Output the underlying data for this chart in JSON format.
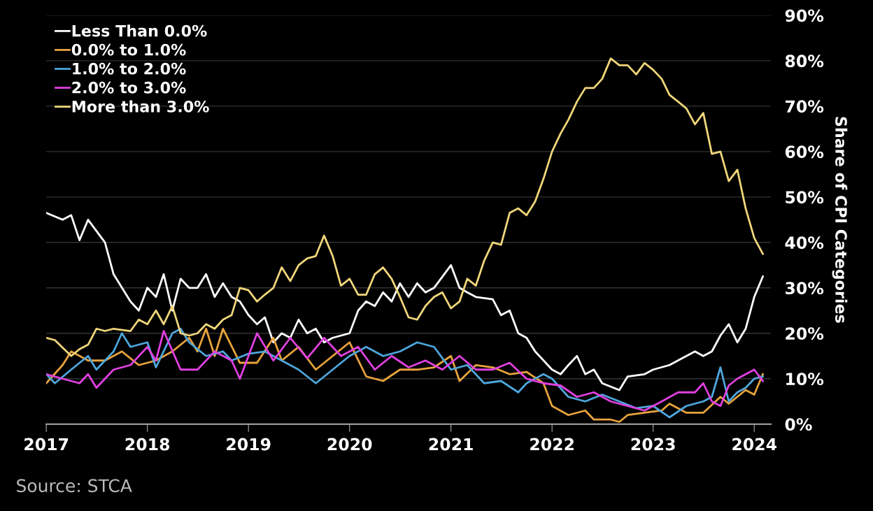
{
  "chart_data": {
    "type": "line",
    "ylabel": "Share of CPI Categories",
    "annotations": [
      "Source: STCA"
    ],
    "xlim": [
      "2017-01",
      "2024-03"
    ],
    "xticks": [
      {
        "value": "2017-01",
        "label": "2017"
      },
      {
        "value": "2018-01",
        "label": "2018"
      },
      {
        "value": "2019-01",
        "label": "2019"
      },
      {
        "value": "2020-01",
        "label": "2020"
      },
      {
        "value": "2021-01",
        "label": "2021"
      },
      {
        "value": "2022-01",
        "label": "2022"
      },
      {
        "value": "2023-01",
        "label": "2023"
      },
      {
        "value": "2024-01",
        "label": "2024"
      }
    ],
    "ylim": [
      0,
      90
    ],
    "yticks": [
      {
        "value": 0,
        "label": "0%"
      },
      {
        "value": 10,
        "label": "10%"
      },
      {
        "value": 20,
        "label": "20%"
      },
      {
        "value": 30,
        "label": "30%"
      },
      {
        "value": 40,
        "label": "40%"
      },
      {
        "value": 50,
        "label": "50%"
      },
      {
        "value": 60,
        "label": "60%"
      },
      {
        "value": 70,
        "label": "70%"
      },
      {
        "value": 80,
        "label": "80%"
      },
      {
        "value": 90,
        "label": "90%"
      }
    ],
    "grid": "y",
    "legend": "top left",
    "marker": "none",
    "line_style": "solid",
    "series": [
      {
        "name": "Less Than 0.0%",
        "color": "#ffffff",
        "x": [
          "2017-01",
          "2017-03",
          "2017-04",
          "2017-05",
          "2017-06",
          "2017-08",
          "2017-09",
          "2017-11",
          "2017-12",
          "2018-01",
          "2018-02",
          "2018-03",
          "2018-04",
          "2018-05",
          "2018-06",
          "2018-07",
          "2018-08",
          "2018-09",
          "2018-10",
          "2018-11",
          "2018-12",
          "2019-01",
          "2019-02",
          "2019-03",
          "2019-04",
          "2019-05",
          "2019-06",
          "2019-07",
          "2019-08",
          "2019-09",
          "2019-10",
          "2019-11",
          "2020-01",
          "2020-02",
          "2020-03",
          "2020-04",
          "2020-05",
          "2020-06",
          "2020-07",
          "2020-08",
          "2020-09",
          "2020-10",
          "2020-11",
          "2021-01",
          "2021-02",
          "2021-03",
          "2021-04",
          "2021-06",
          "2021-07",
          "2021-08",
          "2021-09",
          "2021-10",
          "2021-11",
          "2022-01",
          "2022-02",
          "2022-03",
          "2022-04",
          "2022-05",
          "2022-06",
          "2022-07",
          "2022-09",
          "2022-10",
          "2022-12",
          "2023-01",
          "2023-03",
          "2023-05",
          "2023-06",
          "2023-07",
          "2023-08",
          "2023-09",
          "2023-10",
          "2023-11",
          "2023-12",
          "2024-01",
          "2024-02"
        ],
        "values": [
          46.5,
          45,
          46,
          40.5,
          45,
          40,
          33,
          27,
          25,
          30,
          28,
          33,
          25,
          32,
          30,
          30,
          33,
          28,
          31,
          28,
          27,
          24,
          22,
          23.5,
          18,
          20,
          19,
          23,
          20,
          21,
          18,
          19,
          20,
          25,
          27,
          26,
          29,
          27,
          31,
          28,
          31,
          29,
          30,
          35,
          30,
          29,
          28,
          27.5,
          24,
          25,
          20,
          19,
          16,
          12,
          11,
          13,
          15,
          11,
          12,
          9,
          7.5,
          10.5,
          11,
          12,
          13,
          15,
          16,
          15,
          16,
          19.5,
          22,
          18,
          21,
          28,
          32.5
        ]
      },
      {
        "name": "0.0% to 1.0%",
        "color": "#e8a33d",
        "x": [
          "2017-01",
          "2017-03",
          "2017-04",
          "2017-06",
          "2017-08",
          "2017-10",
          "2017-12",
          "2018-02",
          "2018-04",
          "2018-06",
          "2018-07",
          "2018-08",
          "2018-09",
          "2018-10",
          "2018-12",
          "2019-02",
          "2019-04",
          "2019-05",
          "2019-07",
          "2019-09",
          "2019-11",
          "2020-01",
          "2020-03",
          "2020-05",
          "2020-07",
          "2020-09",
          "2020-11",
          "2021-01",
          "2021-02",
          "2021-04",
          "2021-06",
          "2021-08",
          "2021-10",
          "2021-12",
          "2022-01",
          "2022-03",
          "2022-05",
          "2022-06",
          "2022-08",
          "2022-09",
          "2022-10",
          "2022-12",
          "2023-02",
          "2023-03",
          "2023-05",
          "2023-07",
          "2023-09",
          "2023-10",
          "2023-12",
          "2024-01",
          "2024-02"
        ],
        "values": [
          9,
          13,
          16,
          14,
          14,
          16,
          13,
          14,
          16,
          19,
          16,
          21,
          15,
          21,
          13.5,
          13.5,
          19,
          14,
          17,
          12,
          15,
          18,
          10.5,
          9.5,
          12,
          12,
          12.5,
          15,
          9.5,
          13,
          12.5,
          11,
          11.5,
          9,
          4,
          2,
          3,
          1,
          1,
          0.5,
          2,
          2.5,
          3,
          4.5,
          2.5,
          2.5,
          6,
          4.5,
          7.5,
          6.5,
          11
        ]
      },
      {
        "name": "1.0% to 2.0%",
        "color": "#4ea6dc",
        "x": [
          "2017-01",
          "2017-02",
          "2017-04",
          "2017-06",
          "2017-07",
          "2017-09",
          "2017-10",
          "2017-11",
          "2018-01",
          "2018-02",
          "2018-04",
          "2018-05",
          "2018-06",
          "2018-08",
          "2018-10",
          "2018-11",
          "2019-01",
          "2019-03",
          "2019-05",
          "2019-07",
          "2019-09",
          "2019-11",
          "2020-01",
          "2020-03",
          "2020-05",
          "2020-07",
          "2020-09",
          "2020-11",
          "2021-01",
          "2021-03",
          "2021-05",
          "2021-07",
          "2021-09",
          "2021-10",
          "2021-12",
          "2022-01",
          "2022-03",
          "2022-05",
          "2022-07",
          "2022-09",
          "2022-11",
          "2023-01",
          "2023-03",
          "2023-05",
          "2023-07",
          "2023-08",
          "2023-09",
          "2023-10",
          "2023-11",
          "2023-12",
          "2024-01",
          "2024-02"
        ],
        "values": [
          11,
          9,
          12,
          15,
          12,
          16,
          20,
          17,
          18,
          12.5,
          20,
          21,
          18,
          15,
          16,
          14,
          15.5,
          16,
          14,
          12,
          9,
          12,
          15,
          17,
          15,
          16,
          18,
          17,
          12,
          13,
          9,
          9.5,
          7,
          9,
          11,
          10,
          6,
          5,
          6.5,
          5,
          3.5,
          4,
          1.5,
          4,
          5,
          6,
          12.5,
          5,
          7,
          8,
          10,
          10.5
        ]
      },
      {
        "name": "2.0% to 3.0%",
        "color": "#e040e0",
        "x": [
          "2017-01",
          "2017-03",
          "2017-05",
          "2017-06",
          "2017-07",
          "2017-09",
          "2017-11",
          "2018-01",
          "2018-02",
          "2018-03",
          "2018-05",
          "2018-07",
          "2018-09",
          "2018-11",
          "2018-12",
          "2019-02",
          "2019-04",
          "2019-06",
          "2019-08",
          "2019-10",
          "2019-12",
          "2020-02",
          "2020-04",
          "2020-06",
          "2020-08",
          "2020-10",
          "2020-12",
          "2021-02",
          "2021-04",
          "2021-06",
          "2021-08",
          "2021-10",
          "2021-12",
          "2022-02",
          "2022-04",
          "2022-06",
          "2022-08",
          "2022-10",
          "2022-12",
          "2023-02",
          "2023-04",
          "2023-06",
          "2023-07",
          "2023-08",
          "2023-09",
          "2023-10",
          "2023-11",
          "2024-01",
          "2024-02"
        ],
        "values": [
          11,
          10,
          9,
          11,
          8,
          12,
          13,
          17,
          14,
          20.5,
          12,
          12,
          16,
          14,
          10,
          20,
          14,
          19,
          14.5,
          19,
          15,
          17,
          12,
          15,
          12.5,
          14,
          12,
          15,
          12,
          12,
          13.5,
          10,
          9,
          8.5,
          6,
          7,
          5,
          4,
          3,
          5,
          7,
          7,
          9,
          5,
          4,
          8.5,
          10,
          12,
          9.5
        ]
      },
      {
        "name": "More than 3.0%",
        "color": "#f0d67a",
        "x": [
          "2017-01",
          "2017-02",
          "2017-04",
          "2017-05",
          "2017-06",
          "2017-07",
          "2017-08",
          "2017-09",
          "2017-11",
          "2017-12",
          "2018-01",
          "2018-02",
          "2018-03",
          "2018-04",
          "2018-05",
          "2018-06",
          "2018-07",
          "2018-08",
          "2018-09",
          "2018-10",
          "2018-11",
          "2018-12",
          "2019-01",
          "2019-02",
          "2019-03",
          "2019-04",
          "2019-05",
          "2019-06",
          "2019-07",
          "2019-08",
          "2019-09",
          "2019-10",
          "2019-11",
          "2019-12",
          "2020-01",
          "2020-02",
          "2020-03",
          "2020-04",
          "2020-05",
          "2020-06",
          "2020-07",
          "2020-08",
          "2020-09",
          "2020-10",
          "2020-11",
          "2020-12",
          "2021-01",
          "2021-02",
          "2021-03",
          "2021-04",
          "2021-05",
          "2021-06",
          "2021-07",
          "2021-08",
          "2021-09",
          "2021-10",
          "2021-11",
          "2021-12",
          "2022-01",
          "2022-02",
          "2022-03",
          "2022-04",
          "2022-05",
          "2022-06",
          "2022-07",
          "2022-08",
          "2022-09",
          "2022-10",
          "2022-11",
          "2022-12",
          "2023-01",
          "2023-02",
          "2023-03",
          "2023-04",
          "2023-05",
          "2023-06",
          "2023-07",
          "2023-08",
          "2023-09",
          "2023-10",
          "2023-11",
          "2023-12",
          "2024-01",
          "2024-02"
        ],
        "values": [
          19,
          18.5,
          15,
          16.5,
          17.5,
          21,
          20.5,
          21,
          20.5,
          23,
          22,
          25,
          22,
          26,
          20,
          19.5,
          20,
          22,
          21,
          23,
          24,
          30,
          29.5,
          27,
          28.5,
          30,
          34.5,
          31.5,
          35,
          36.5,
          37,
          41.5,
          37,
          30.5,
          32,
          28.5,
          28.5,
          33,
          34.5,
          32,
          28,
          23.5,
          23,
          26,
          28,
          29,
          25.5,
          27,
          32,
          30.5,
          36,
          40,
          39.5,
          46.5,
          47.5,
          46,
          49,
          54,
          60,
          64,
          67,
          71,
          74,
          74,
          76,
          80.5,
          79,
          79,
          77,
          79.5,
          78,
          76,
          72.5,
          71,
          69.5,
          66,
          68.5,
          59.5,
          60,
          53.5,
          56,
          47.5,
          41,
          37.5
        ]
      }
    ]
  }
}
